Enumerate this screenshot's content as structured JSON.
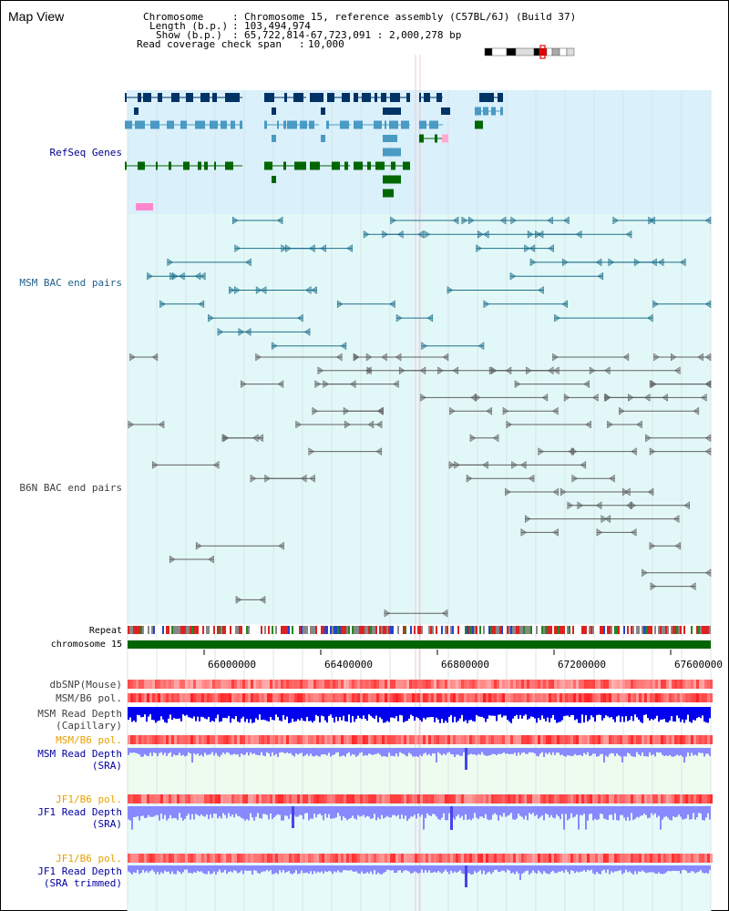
{
  "page_title": "Map View",
  "header": {
    "chromosome_key": "Chromosome",
    "chromosome_value": "Chromosome 15, reference assembly (C57BL/6J) (Build 37)",
    "length_key": "Length (b.p.)",
    "length_value": "103,494,974",
    "show_key": "Show (b.p.)",
    "show_value": "65,722,814-67,723,091 : 2,000,278 bp",
    "coverage_key": "Read coverage check span",
    "coverage_value": "10,000"
  },
  "tracks": {
    "refseq": "RefSeq Genes",
    "msm_bac": "MSM BAC end pairs",
    "b6n_bac": "B6N BAC end pairs",
    "repeat": "Repeat",
    "chromosome": "chromosome 15",
    "dbsnp": "dbSNP(Mouse)",
    "msm_b6_pol_1": "MSM/B6 pol.",
    "msm_depth_cap_1": "MSM Read Depth",
    "msm_depth_cap_2": "(Capillary)",
    "msm_b6_pol_2": "MSM/B6 pol.",
    "msm_depth_sra_1": "MSM Read Depth",
    "msm_depth_sra_2": "(SRA)",
    "jf1_b6_pol_1": "JF1/B6 pol.",
    "jf1_depth_sra_1": "JF1 Read Depth",
    "jf1_depth_sra_2": "(SRA)",
    "jf1_b6_pol_2": "JF1/B6 pol.",
    "jf1_depth_trim_1": "JF1 Read Depth",
    "jf1_depth_trim_2": "(SRA trimmed)"
  },
  "axis_ticks": [
    "66000000",
    "66400000",
    "66800000",
    "67200000",
    "67600000"
  ],
  "colors": {
    "refseq_bg": "#daf0fb",
    "bac_bg": "#e2f8f8",
    "gene_dark": "#003366",
    "gene_light": "#4a9ac4",
    "gene_green": "#006600",
    "msm_line": "#1f6f8b",
    "b6n_line": "#606060",
    "chrom_green": "#006400",
    "depth_blue": "#0000ee",
    "depth_light": "#8888ff",
    "pol_red": "#ee3333"
  }
}
